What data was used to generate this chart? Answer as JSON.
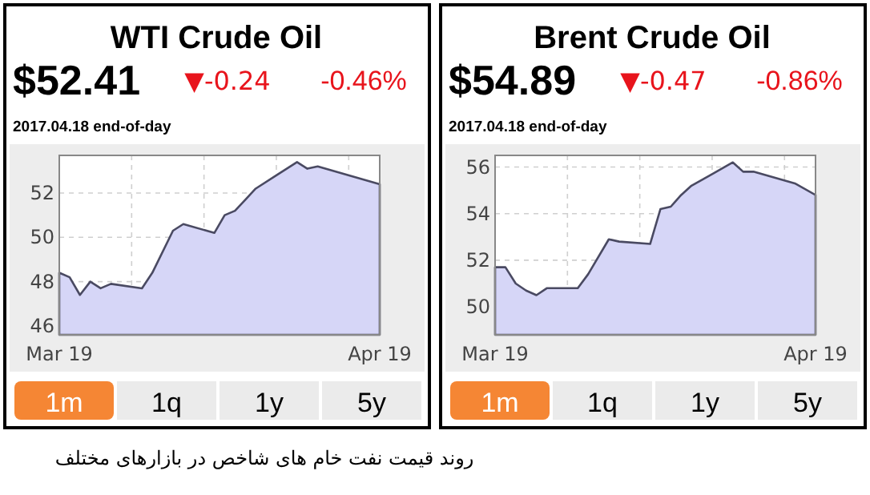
{
  "chart_data": [
    {
      "type": "area",
      "title": "WTI Crude Oil",
      "subtitle": "$52.41",
      "color": "#d6d6f7",
      "grid": true,
      "annotations": [
        "▼-0.24",
        "-0.46%",
        "2017.04.18 end-of-day",
        "1m",
        "1q",
        "1y",
        "5y",
        "روند قیمت نفت خام های شاخص در بازارهای مختلف"
      ],
      "x": [
        "2017-03-19",
        "2017-03-20",
        "2017-03-21",
        "2017-03-22",
        "2017-03-23",
        "2017-03-24",
        "2017-03-27",
        "2017-03-28",
        "2017-03-30",
        "2017-03-31",
        "2017-04-03",
        "2017-04-04",
        "2017-04-05",
        "2017-04-06",
        "2017-04-07",
        "2017-04-09",
        "2017-04-11",
        "2017-04-12",
        "2017-04-13",
        "2017-04-19"
      ],
      "values": [
        48.4,
        48.2,
        47.4,
        48.0,
        47.7,
        47.9,
        47.7,
        48.4,
        50.3,
        50.6,
        50.2,
        51.0,
        51.2,
        51.7,
        52.2,
        52.8,
        53.4,
        53.1,
        53.2,
        52.4
      ],
      "xlim": [
        "2017-03-19",
        "2017-04-19"
      ],
      "ylim": [
        45.6,
        53.7
      ],
      "xticks": [
        {
          "value": "2017-03-19",
          "label": "Mar 19"
        },
        {
          "value": "2017-03-26",
          "label": null
        },
        {
          "value": "2017-04-02",
          "label": null
        },
        {
          "value": "2017-04-09",
          "label": null
        },
        {
          "value": "2017-04-16",
          "label": null
        },
        {
          "value": "2017-04-19",
          "label": "Apr 19"
        }
      ],
      "yticks": [
        46,
        48,
        50,
        52
      ]
    },
    {
      "type": "area",
      "title": "Brent Crude Oil",
      "subtitle": "$54.89",
      "color": "#d6d6f7",
      "grid": true,
      "annotations": [
        "▼-0.47",
        "-0.86%",
        "2017.04.18 end-of-day",
        "1m",
        "1q",
        "1y",
        "5y"
      ],
      "x": [
        "2017-03-19",
        "2017-03-20",
        "2017-03-21",
        "2017-03-22",
        "2017-03-23",
        "2017-03-24",
        "2017-03-27",
        "2017-03-28",
        "2017-03-30",
        "2017-03-31",
        "2017-04-03",
        "2017-04-04",
        "2017-04-05",
        "2017-04-06",
        "2017-04-07",
        "2017-04-09",
        "2017-04-11",
        "2017-04-12",
        "2017-04-13",
        "2017-04-17",
        "2017-04-19"
      ],
      "values": [
        51.7,
        51.7,
        51.0,
        50.7,
        50.5,
        50.8,
        50.8,
        51.4,
        52.9,
        52.8,
        52.7,
        54.2,
        54.3,
        54.8,
        55.2,
        55.7,
        56.2,
        55.8,
        55.8,
        55.3,
        54.8
      ],
      "xlim": [
        "2017-03-19",
        "2017-04-19"
      ],
      "ylim": [
        48.8,
        56.5
      ],
      "xticks": [
        {
          "value": "2017-03-19",
          "label": "Mar 19"
        },
        {
          "value": "2017-03-26",
          "label": null
        },
        {
          "value": "2017-04-02",
          "label": null
        },
        {
          "value": "2017-04-09",
          "label": null
        },
        {
          "value": "2017-04-16",
          "label": null
        },
        {
          "value": "2017-04-19",
          "label": "Apr 19"
        }
      ],
      "yticks": [
        50,
        52,
        54,
        56
      ]
    }
  ]
}
